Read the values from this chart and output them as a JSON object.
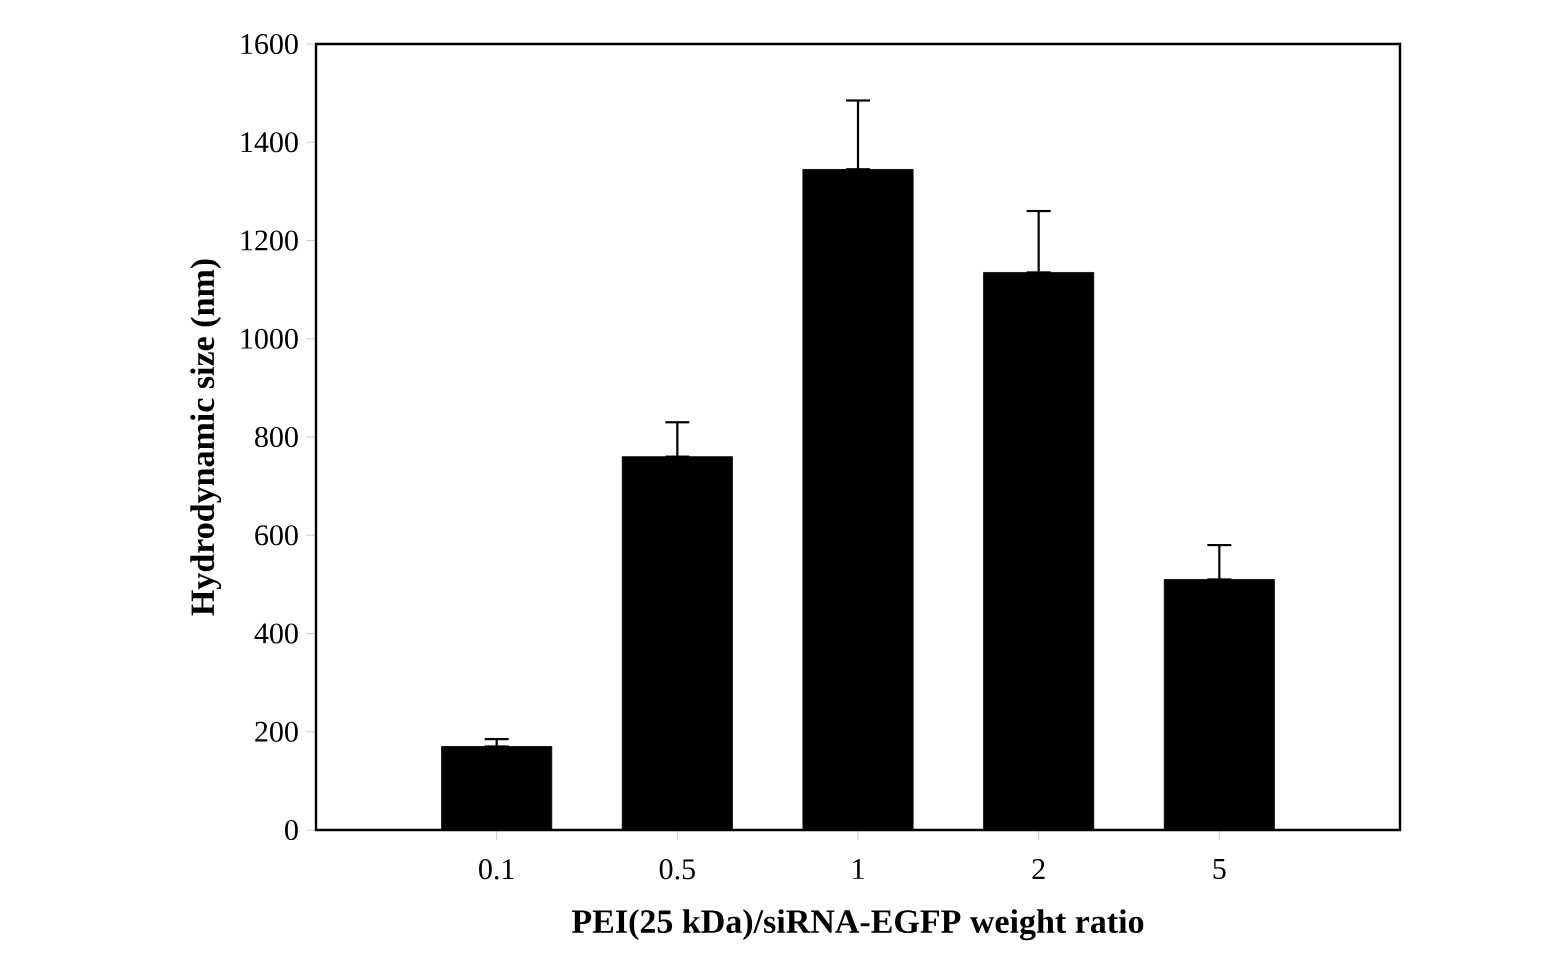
{
  "chart_data": {
    "type": "bar",
    "xlabel": "PEI(25 kDa)/siRNA-EGFP weight ratio",
    "ylabel": "Hydrodynamic size (nm)",
    "categories": [
      "0.1",
      "0.5",
      "1",
      "2",
      "5"
    ],
    "values": [
      170,
      760,
      1345,
      1135,
      510
    ],
    "errors": [
      [
        170,
        185
      ],
      [
        760,
        830
      ],
      [
        1345,
        1485
      ],
      [
        1135,
        1260
      ],
      [
        510,
        580
      ]
    ],
    "color": "#000000",
    "ylim": [
      0,
      1600
    ],
    "yticks": [
      0,
      200,
      400,
      600,
      800,
      1000,
      1200,
      1400,
      1600
    ],
    "grid": false
  }
}
